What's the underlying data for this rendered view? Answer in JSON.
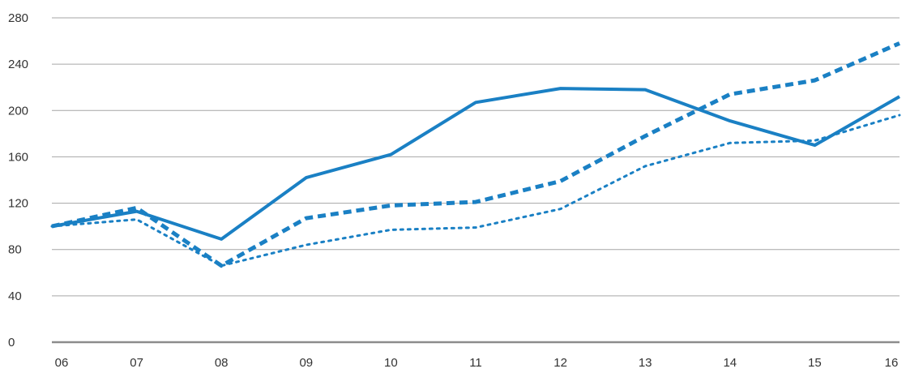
{
  "chart_data": {
    "type": "line",
    "title": "",
    "xlabel": "",
    "ylabel": "",
    "categories": [
      "06",
      "07",
      "08",
      "09",
      "10",
      "11",
      "12",
      "13",
      "14",
      "15",
      "16"
    ],
    "ylim": [
      0,
      280
    ],
    "yticks": [
      0,
      40,
      80,
      120,
      160,
      200,
      240,
      280
    ],
    "grid": true,
    "legend": "none",
    "series": [
      {
        "line_style": "solid",
        "color": "#1a80c4",
        "values": [
          100,
          113,
          89,
          142,
          162,
          207,
          219,
          218,
          191,
          170,
          212
        ]
      },
      {
        "line_style": "dashed",
        "color": "#1a80c4",
        "values": [
          100,
          116,
          66,
          107,
          118,
          121,
          139,
          178,
          214,
          226,
          258
        ]
      },
      {
        "line_style": "dotted",
        "color": "#1a80c4",
        "values": [
          100,
          106,
          66,
          84,
          97,
          99,
          115,
          152,
          172,
          174,
          196
        ]
      }
    ]
  }
}
